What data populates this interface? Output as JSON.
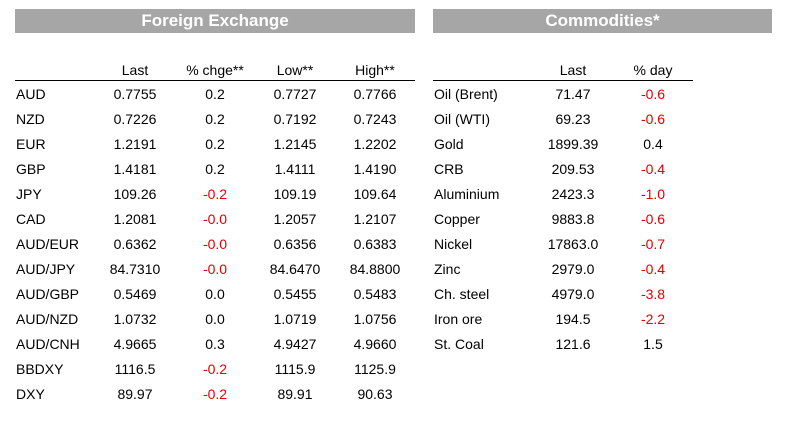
{
  "fx": {
    "title": "Foreign Exchange",
    "headers": [
      "",
      "Last",
      "% chge**",
      "Low**",
      "High**"
    ],
    "rows": [
      {
        "name": "AUD",
        "last": "0.7755",
        "chg": "0.2",
        "low": "0.7727",
        "high": "0.7766"
      },
      {
        "name": "NZD",
        "last": "0.7226",
        "chg": "0.2",
        "low": "0.7192",
        "high": "0.7243"
      },
      {
        "name": "EUR",
        "last": "1.2191",
        "chg": "0.2",
        "low": "1.2145",
        "high": "1.2202"
      },
      {
        "name": "GBP",
        "last": "1.4181",
        "chg": "0.2",
        "low": "1.4111",
        "high": "1.4190"
      },
      {
        "name": "JPY",
        "last": "109.26",
        "chg": "-0.2",
        "low": "109.19",
        "high": "109.64"
      },
      {
        "name": "CAD",
        "last": "1.2081",
        "chg": "-0.0",
        "low": "1.2057",
        "high": "1.2107"
      },
      {
        "name": "AUD/EUR",
        "last": "0.6362",
        "chg": "-0.0",
        "low": "0.6356",
        "high": "0.6383"
      },
      {
        "name": "AUD/JPY",
        "last": "84.7310",
        "chg": "-0.0",
        "low": "84.6470",
        "high": "84.8800"
      },
      {
        "name": "AUD/GBP",
        "last": "0.5469",
        "chg": "0.0",
        "low": "0.5455",
        "high": "0.5483"
      },
      {
        "name": "AUD/NZD",
        "last": "1.0732",
        "chg": "0.0",
        "low": "1.0719",
        "high": "1.0756"
      },
      {
        "name": "AUD/CNH",
        "last": "4.9665",
        "chg": "0.3",
        "low": "4.9427",
        "high": "4.9660"
      },
      {
        "name": "BBDXY",
        "last": "1116.5",
        "chg": "-0.2",
        "low": "1115.9",
        "high": "1125.9"
      },
      {
        "name": "DXY",
        "last": "89.97",
        "chg": "-0.2",
        "low": "89.91",
        "high": "90.63"
      }
    ]
  },
  "commodities": {
    "title": "Commodities*",
    "headers": [
      "",
      "Last",
      "% day"
    ],
    "rows": [
      {
        "name": "Oil (Brent)",
        "last": "71.47",
        "chg": "-0.6"
      },
      {
        "name": "Oil (WTI)",
        "last": "69.23",
        "chg": "-0.6"
      },
      {
        "name": "Gold",
        "last": "1899.39",
        "chg": "0.4"
      },
      {
        "name": "CRB",
        "last": "209.53",
        "chg": "-0.4"
      },
      {
        "name": "Aluminium",
        "last": "2423.3",
        "chg": "-1.0"
      },
      {
        "name": "Copper",
        "last": "9883.8",
        "chg": "-0.6"
      },
      {
        "name": "Nickel",
        "last": "17863.0",
        "chg": "-0.7"
      },
      {
        "name": "Zinc",
        "last": "2979.0",
        "chg": "-0.4"
      },
      {
        "name": "Ch. steel",
        "last": "4979.0",
        "chg": "-3.8"
      },
      {
        "name": "Iron ore",
        "last": "194.5",
        "chg": "-2.2"
      },
      {
        "name": "St. Coal",
        "last": "121.6",
        "chg": "1.5"
      }
    ]
  },
  "colors": {
    "header_bg": "#a6a6a6",
    "negative": "#e00000",
    "text": "#000000"
  }
}
